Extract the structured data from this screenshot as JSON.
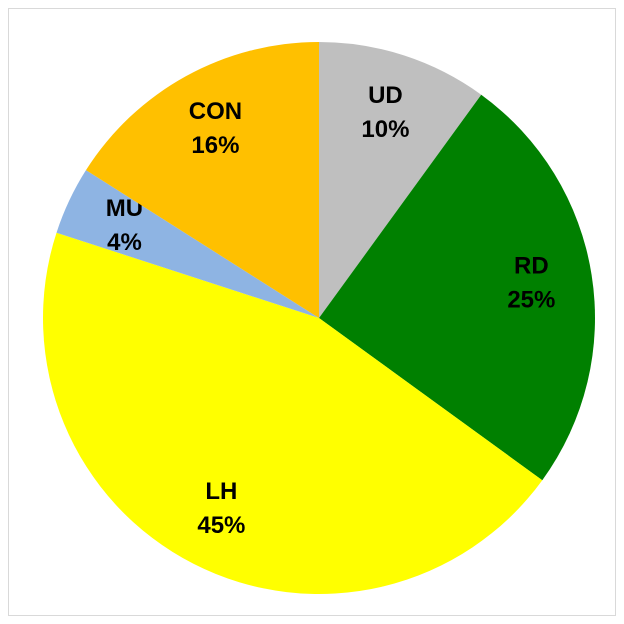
{
  "chart_data": {
    "type": "pie",
    "categories": [
      "UD",
      "RD",
      "LH",
      "MU",
      "CON"
    ],
    "values": [
      10,
      25,
      45,
      4,
      16
    ],
    "value_labels": [
      "10%",
      "25%",
      "45%",
      "4%",
      "16%"
    ],
    "colors": [
      "#bfbfbf",
      "#008000",
      "#ffff00",
      "#8eb4e3",
      "#ffc000"
    ]
  }
}
